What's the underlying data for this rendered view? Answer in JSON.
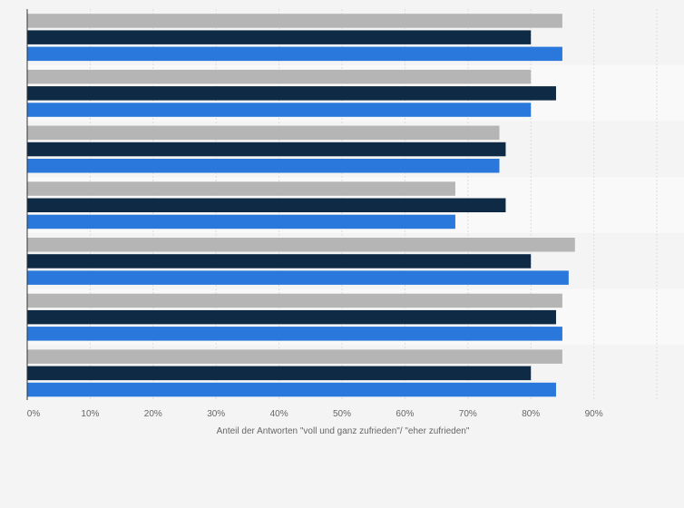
{
  "chart_data": {
    "type": "bar",
    "orientation": "horizontal",
    "categories": [
      "",
      "",
      "",
      "",
      "",
      "",
      ""
    ],
    "series": [
      {
        "color": "#b5b5b5",
        "values": [
          85,
          80,
          75,
          68,
          87,
          85,
          85
        ]
      },
      {
        "color": "#0f2a45",
        "values": [
          80,
          84,
          76,
          76,
          80,
          84,
          80
        ]
      },
      {
        "color": "#2a78db",
        "values": [
          85,
          80,
          75,
          68,
          86,
          85,
          84
        ]
      }
    ],
    "xlabel": "Anteil der Antworten \"voll und ganz zufrieden\"/ \"eher zufrieden\"",
    "ylabel": "",
    "xlim": [
      0,
      100
    ],
    "xticks": [
      0,
      10,
      20,
      30,
      40,
      50,
      60,
      70,
      80,
      90
    ],
    "xtick_labels": [
      "0%",
      "10%",
      "20%",
      "30%",
      "40%",
      "50%",
      "60%",
      "70%",
      "80%",
      "90%"
    ],
    "grid": true,
    "legend": "none",
    "colors": {
      "background": "#f4f4f4",
      "band_alt": "#f9f9f9",
      "grid": "#dddddd",
      "axis": "#333333"
    }
  }
}
